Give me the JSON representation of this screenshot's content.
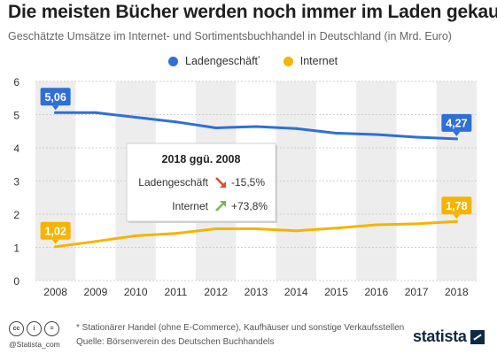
{
  "header": {
    "title": "Die meisten Bücher werden noch immer im Laden gekauft",
    "subtitle": "Geschätzte Umsätze im Internet- und Sortimentsbuchhandel in Deutschland (in Mrd. Euro)"
  },
  "legend": {
    "items": [
      {
        "label": "Ladengeschäft",
        "marker": "*",
        "color": "#2f6fd6"
      },
      {
        "label": "Internet",
        "marker": "",
        "color": "#f5b400"
      }
    ]
  },
  "chart_data": {
    "type": "line",
    "title": "Die meisten Bücher werden noch immer im Laden gekauft",
    "subtitle": "Geschätzte Umsätze im Internet- und Sortimentsbuchhandel in Deutschland (in Mrd. Euro)",
    "categories": [
      "2008",
      "2009",
      "2010",
      "2011",
      "2012",
      "2013",
      "2014",
      "2015",
      "2016",
      "2017",
      "2018"
    ],
    "series": [
      {
        "name": "Ladengeschäft",
        "color": "#2f6fd6",
        "values": [
          5.06,
          5.06,
          4.92,
          4.78,
          4.6,
          4.64,
          4.58,
          4.44,
          4.4,
          4.32,
          4.27
        ]
      },
      {
        "name": "Internet",
        "color": "#f5b400",
        "values": [
          1.02,
          1.18,
          1.35,
          1.42,
          1.56,
          1.56,
          1.5,
          1.58,
          1.68,
          1.71,
          1.78
        ]
      }
    ],
    "ylim": [
      0,
      6
    ],
    "yticks": [
      "0",
      "1",
      "2",
      "3",
      "4",
      "5",
      "6"
    ],
    "xlabel": "",
    "ylabel": "",
    "grid": true,
    "data_labels": [
      {
        "series": 0,
        "index": 0,
        "text": "5,06"
      },
      {
        "series": 0,
        "index": 10,
        "text": "4,27"
      },
      {
        "series": 1,
        "index": 0,
        "text": "1,02"
      },
      {
        "series": 1,
        "index": 10,
        "text": "1,78"
      }
    ],
    "annotation": {
      "title": "2018 ggü. 2008",
      "rows": [
        {
          "label": "Ladengeschäft",
          "arrow": "down",
          "arrow_color": "#e04b2f",
          "value": "-15,5%"
        },
        {
          "label": "Internet",
          "arrow": "up",
          "arrow_color": "#7ab648",
          "value": "+73,8%"
        }
      ]
    }
  },
  "footer": {
    "note": "* Stationärer Handel (ohne E-Commerce), Kaufhäuser und sonstige Verkaufsstellen",
    "source": "Quelle: Börsenverein des Deutschen Buchhandels",
    "handle": "@Statista_com",
    "license_icons": [
      "cc",
      "i",
      "="
    ],
    "logo": "statista"
  }
}
